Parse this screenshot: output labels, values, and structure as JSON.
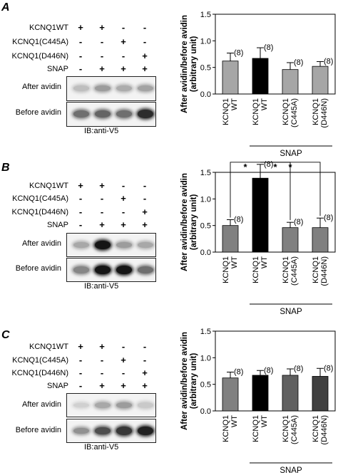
{
  "panels": [
    {
      "letter": "A",
      "rows": [
        {
          "label": "KCNQ1WT",
          "marks": [
            "+",
            "+",
            "-",
            "-"
          ]
        },
        {
          "label": "KCNQ1(C445A)",
          "marks": [
            "-",
            "-",
            "+",
            "-"
          ]
        },
        {
          "label": "KCNQ1(D446N)",
          "marks": [
            "-",
            "-",
            "-",
            "+"
          ]
        },
        {
          "label": "SNAP",
          "marks": [
            "-",
            "+",
            "+",
            "+"
          ]
        }
      ],
      "blots": [
        {
          "label": "After avidin",
          "intensity": [
            0.2,
            0.35,
            0.28,
            0.32
          ]
        },
        {
          "label": "Before avidin",
          "intensity": [
            0.55,
            0.6,
            0.55,
            0.85
          ]
        }
      ],
      "ib_label": "IB:anti-V5"
    },
    {
      "letter": "B",
      "rows": [
        {
          "label": "KCNQ1WT",
          "marks": [
            "+",
            "+",
            "-",
            "-"
          ]
        },
        {
          "label": "KCNQ1(C445A)",
          "marks": [
            "-",
            "-",
            "+",
            "-"
          ]
        },
        {
          "label": "KCNQ1(D446N)",
          "marks": [
            "-",
            "-",
            "-",
            "+"
          ]
        },
        {
          "label": "SNAP",
          "marks": [
            "-",
            "+",
            "+",
            "+"
          ]
        }
      ],
      "blots": [
        {
          "label": "After avidin",
          "intensity": [
            0.3,
            0.95,
            0.35,
            0.3
          ]
        },
        {
          "label": "Before avidin",
          "intensity": [
            0.45,
            0.95,
            0.95,
            0.55
          ]
        }
      ],
      "ib_label": "IB:anti-V5"
    },
    {
      "letter": "C",
      "rows": [
        {
          "label": "KCNQ1WT",
          "marks": [
            "+",
            "+",
            "-",
            "-"
          ]
        },
        {
          "label": "KCNQ1(C445A)",
          "marks": [
            "-",
            "-",
            "+",
            "-"
          ]
        },
        {
          "label": "KCNQ1(D446N)",
          "marks": [
            "-",
            "-",
            "-",
            "+"
          ]
        },
        {
          "label": "SNAP",
          "marks": [
            "-",
            "+",
            "+",
            "+"
          ]
        }
      ],
      "blots": [
        {
          "label": "After avidin",
          "intensity": [
            0.12,
            0.3,
            0.35,
            0.15
          ]
        },
        {
          "label": "Before avidin",
          "intensity": [
            0.4,
            0.7,
            0.8,
            0.9
          ]
        }
      ],
      "ib_label": "IB:anti-V5"
    }
  ],
  "chart_data": [
    {
      "type": "bar",
      "panel": "A",
      "ylabel": "After avidin/before avidin (arbitrary unit)",
      "ylim": [
        0,
        1.5
      ],
      "yticks": [
        "0.0",
        "0.5",
        "1.0",
        "1.5"
      ],
      "categories": [
        "KCNQ1 WT",
        "KCNQ1 WT",
        "KCNQ1 (C445A)",
        "KCNQ1 (D446N)"
      ],
      "values": [
        0.62,
        0.67,
        0.46,
        0.52
      ],
      "errors": [
        0.15,
        0.2,
        0.13,
        0.09
      ],
      "n_labels": [
        "(8)",
        "(8)",
        "(8)",
        "(8)"
      ],
      "bar_colors": [
        "#a6a6a6",
        "#000000",
        "#a6a6a6",
        "#a6a6a6"
      ],
      "group_label": "SNAP",
      "significance": []
    },
    {
      "type": "bar",
      "panel": "B",
      "ylabel": "After avidin/before avidin (arbitrary unit)",
      "ylim": [
        0,
        1.5
      ],
      "yticks": [
        "0.0",
        "0.5",
        "1.0",
        "1.5"
      ],
      "categories": [
        "KCNQ1 WT",
        "KCNQ1 WT",
        "KCNQ1 (C445A)",
        "KCNQ1 (D446N)"
      ],
      "values": [
        0.5,
        1.39,
        0.46,
        0.46
      ],
      "errors": [
        0.11,
        0.26,
        0.1,
        0.18
      ],
      "n_labels": [
        "(8)",
        "(8)",
        "(8)",
        "(8)"
      ],
      "bar_colors": [
        "#808080",
        "#000000",
        "#808080",
        "#808080"
      ],
      "group_label": "SNAP",
      "significance": [
        {
          "from": 0,
          "to": 1,
          "label": "*"
        },
        {
          "from": 1,
          "to": 2,
          "label": "*"
        },
        {
          "from": 1,
          "to": 3,
          "label": "*"
        }
      ]
    },
    {
      "type": "bar",
      "panel": "C",
      "ylabel": "After avidin/before avidin (arbitrary unit)",
      "ylim": [
        0,
        1.5
      ],
      "yticks": [
        "0.0",
        "0.5",
        "1.0",
        "1.5"
      ],
      "categories": [
        "KCNQ1 WT",
        "KCNQ1 WT",
        "KCNQ1 (C445A)",
        "KCNQ1 (D446N)"
      ],
      "values": [
        0.62,
        0.67,
        0.67,
        0.65
      ],
      "errors": [
        0.11,
        0.09,
        0.12,
        0.15
      ],
      "n_labels": [
        "(8)",
        "(8)",
        "(8)",
        "(8)"
      ],
      "bar_colors": [
        "#808080",
        "#000000",
        "#606060",
        "#404040"
      ],
      "group_label": "SNAP",
      "significance": []
    }
  ]
}
